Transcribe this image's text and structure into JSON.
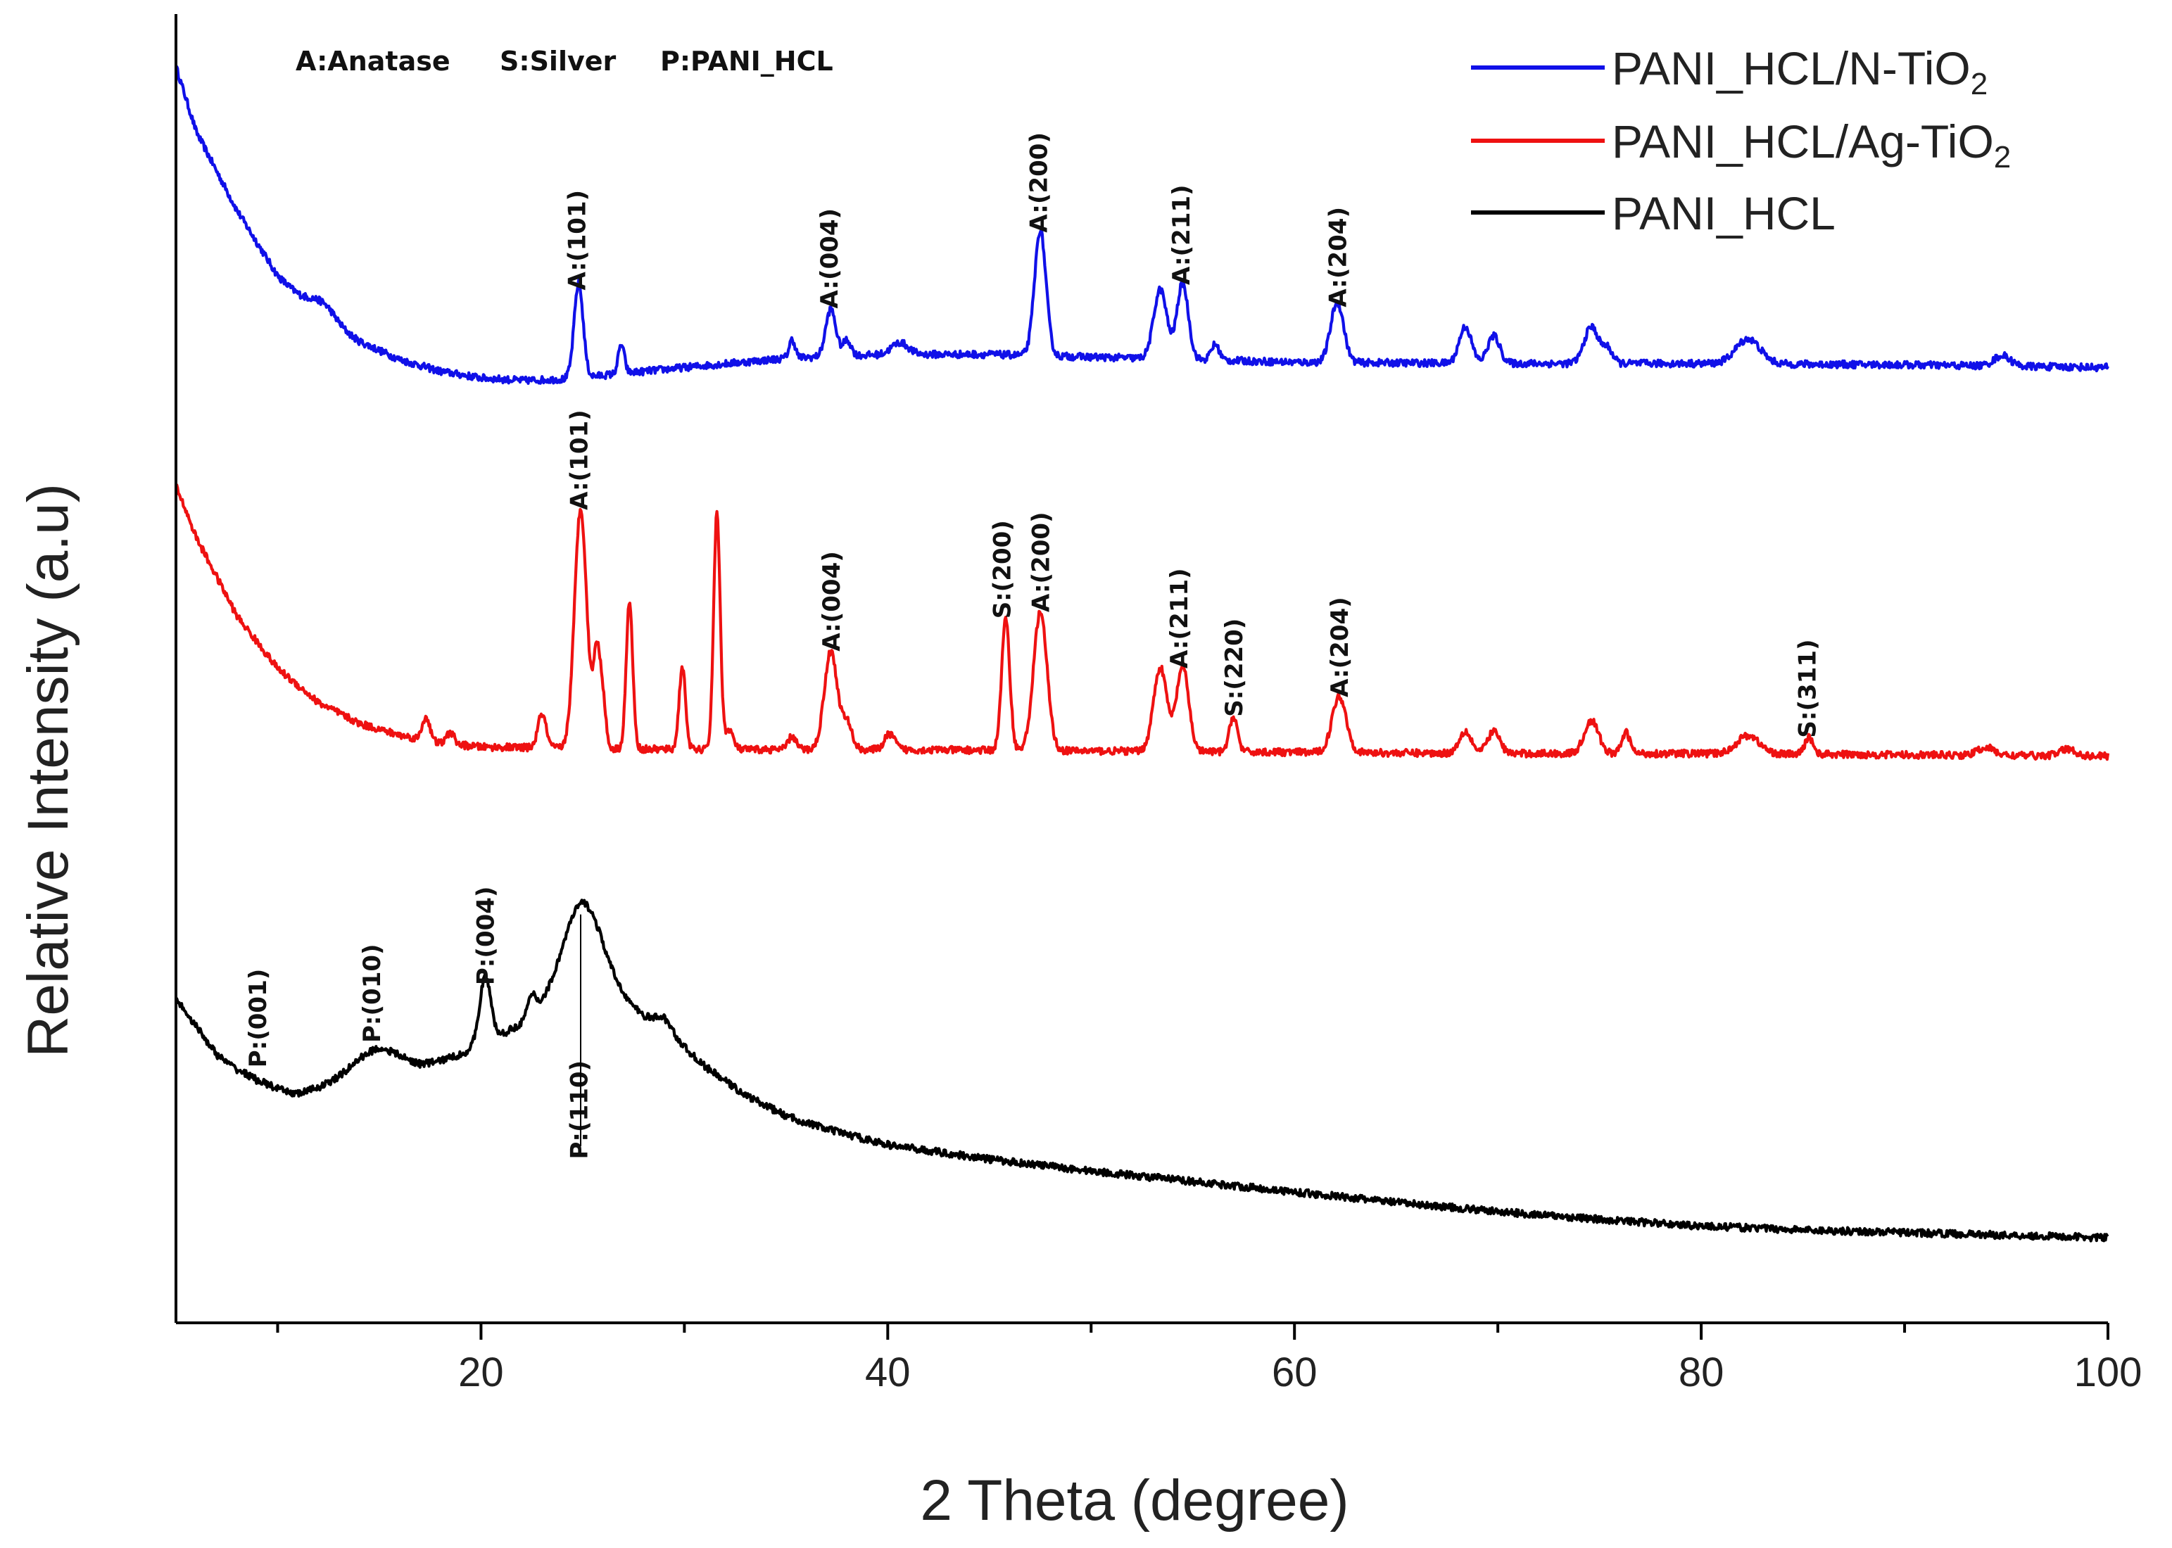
{
  "chart_data": {
    "type": "line",
    "title": "",
    "xlabel": "2 Theta (degree)",
    "ylabel": "Relative Intensity (a.u)",
    "xlim": [
      5,
      100
    ],
    "ylim": [
      0,
      100
    ],
    "x_ticks": [
      20,
      40,
      60,
      80,
      100
    ],
    "y_ticks": [],
    "phase_key": [
      "A:Anatase",
      "S:Silver",
      "P:PANI_HCL"
    ],
    "legend": {
      "position": "top-right",
      "items": [
        {
          "name": "PANI_HCL/N-TiO",
          "subscript": "2",
          "color": "#1010e8"
        },
        {
          "name": "PANI_HCL/Ag-TiO",
          "subscript": "2",
          "color": "#ee1111"
        },
        {
          "name": "PANI_HCL",
          "subscript": "",
          "color": "#000000"
        }
      ]
    },
    "series": [
      {
        "name": "PANI_HCL/N-TiO2",
        "color": "#1010e8",
        "baseline": [
          [
            5,
            96
          ],
          [
            6,
            91
          ],
          [
            8,
            85
          ],
          [
            10,
            80
          ],
          [
            12,
            77
          ],
          [
            14,
            75
          ],
          [
            16,
            73.6
          ],
          [
            18,
            72.7
          ],
          [
            20,
            72.2
          ],
          [
            22,
            72.0
          ],
          [
            24,
            72.1
          ],
          [
            26,
            72.4
          ],
          [
            30,
            73.0
          ],
          [
            35,
            73.7
          ],
          [
            40,
            74.0
          ],
          [
            45,
            74.0
          ],
          [
            50,
            73.8
          ],
          [
            55,
            73.6
          ],
          [
            60,
            73.4
          ],
          [
            70,
            73.3
          ],
          [
            80,
            73.3
          ],
          [
            90,
            73.2
          ],
          [
            100,
            73.0
          ]
        ],
        "peaks": [
          [
            12.2,
            1.2,
            0.6
          ],
          [
            24.8,
            7.2,
            0.22
          ],
          [
            26.9,
            2.2,
            0.15
          ],
          [
            35.3,
            1.4,
            0.15
          ],
          [
            37.2,
            3.6,
            0.25
          ],
          [
            38.0,
            1.2,
            0.2
          ],
          [
            40.6,
            0.9,
            0.4
          ],
          [
            47.5,
            9.6,
            0.28
          ],
          [
            53.4,
            5.3,
            0.32
          ],
          [
            54.5,
            5.8,
            0.28
          ],
          [
            56.1,
            1.2,
            0.2
          ],
          [
            62.1,
            4.6,
            0.32
          ],
          [
            68.4,
            2.8,
            0.3
          ],
          [
            69.8,
            2.1,
            0.3
          ],
          [
            74.6,
            2.8,
            0.35
          ],
          [
            75.4,
            1.1,
            0.25
          ],
          [
            82.3,
            1.9,
            0.6
          ],
          [
            94.8,
            0.8,
            0.4
          ]
        ]
      },
      {
        "name": "PANI_HCL/Ag-TiO2",
        "color": "#ee1111",
        "baseline": [
          [
            5,
            64
          ],
          [
            6,
            60
          ],
          [
            8,
            54
          ],
          [
            10,
            50
          ],
          [
            12,
            47.4
          ],
          [
            14,
            45.8
          ],
          [
            16,
            44.9
          ],
          [
            18,
            44.3
          ],
          [
            20,
            44.0
          ],
          [
            25,
            43.9
          ],
          [
            30,
            43.8
          ],
          [
            40,
            43.8
          ],
          [
            50,
            43.7
          ],
          [
            60,
            43.6
          ],
          [
            70,
            43.5
          ],
          [
            80,
            43.5
          ],
          [
            90,
            43.4
          ],
          [
            100,
            43.3
          ]
        ],
        "peaks": [
          [
            17.3,
            1.8,
            0.18
          ],
          [
            18.5,
            0.9,
            0.18
          ],
          [
            23.0,
            2.6,
            0.2
          ],
          [
            24.9,
            18.3,
            0.3
          ],
          [
            25.7,
            7.2,
            0.18
          ],
          [
            26.0,
            3.0,
            0.15
          ],
          [
            27.3,
            11.2,
            0.16
          ],
          [
            29.9,
            6.3,
            0.16
          ],
          [
            31.6,
            18.0,
            0.16
          ],
          [
            32.2,
            1.5,
            0.2
          ],
          [
            35.3,
            1.0,
            0.2
          ],
          [
            37.2,
            7.5,
            0.32
          ],
          [
            38.0,
            2.0,
            0.25
          ],
          [
            40.1,
            1.2,
            0.25
          ],
          [
            45.8,
            10.0,
            0.2
          ],
          [
            47.5,
            10.6,
            0.33
          ],
          [
            53.4,
            6.4,
            0.33
          ],
          [
            54.5,
            6.5,
            0.3
          ],
          [
            57.0,
            2.7,
            0.2
          ],
          [
            62.2,
            4.3,
            0.35
          ],
          [
            68.4,
            1.7,
            0.3
          ],
          [
            69.8,
            1.7,
            0.3
          ],
          [
            74.6,
            2.5,
            0.35
          ],
          [
            76.3,
            1.6,
            0.2
          ],
          [
            82.3,
            1.4,
            0.55
          ],
          [
            85.3,
            1.3,
            0.2
          ],
          [
            94.0,
            0.6,
            0.4
          ],
          [
            98.0,
            0.5,
            0.4
          ]
        ]
      },
      {
        "name": "PANI_HCL",
        "color": "#000000",
        "baseline": [
          [
            5,
            24.8
          ],
          [
            7,
            20.5
          ],
          [
            9,
            18.0
          ],
          [
            11,
            17.5
          ],
          [
            13,
            18.3
          ],
          [
            15,
            19.4
          ],
          [
            17,
            19.5
          ],
          [
            19,
            20.5
          ],
          [
            21,
            22.0
          ],
          [
            23,
            23.7
          ],
          [
            25,
            24.6
          ],
          [
            27,
            24.3
          ],
          [
            29,
            22.5
          ],
          [
            31,
            19.6
          ],
          [
            33,
            17.4
          ],
          [
            35,
            15.8
          ],
          [
            37,
            14.8
          ],
          [
            40,
            13.6
          ],
          [
            45,
            12.5
          ],
          [
            50,
            11.6
          ],
          [
            55,
            10.8
          ],
          [
            60,
            10.0
          ],
          [
            65,
            9.2
          ],
          [
            70,
            8.5
          ],
          [
            75,
            7.9
          ],
          [
            80,
            7.4
          ],
          [
            85,
            7.1
          ],
          [
            90,
            6.9
          ],
          [
            95,
            6.7
          ],
          [
            100,
            6.5
          ]
        ],
        "peaks": [
          [
            9.0,
            0.5,
            0.6
          ],
          [
            14.8,
            1.6,
            1.2
          ],
          [
            20.2,
            5.0,
            0.28
          ],
          [
            22.5,
            1.5,
            0.2
          ],
          [
            25.0,
            7.5,
            1.0
          ],
          [
            29.0,
            0.8,
            0.4
          ]
        ]
      }
    ],
    "annotations": [
      {
        "text": "A:(101)",
        "x": 24.8,
        "y": 78.9
      },
      {
        "text": "A:(004)",
        "x": 37.2,
        "y": 77.5
      },
      {
        "text": "A:(200)",
        "x": 47.5,
        "y": 83.3
      },
      {
        "text": "A:(211)",
        "x": 54.5,
        "y": 79.3
      },
      {
        "text": "A:(204)",
        "x": 62.2,
        "y": 77.6
      },
      {
        "text": "A:(101)",
        "x": 24.9,
        "y": 62.1
      },
      {
        "text": "A:(004)",
        "x": 37.3,
        "y": 51.3
      },
      {
        "text": "S:(200)",
        "x": 45.7,
        "y": 53.8
      },
      {
        "text": "A:(200)",
        "x": 47.6,
        "y": 54.3
      },
      {
        "text": "A:(211)",
        "x": 54.4,
        "y": 50.0
      },
      {
        "text": "S:(220)",
        "x": 57.1,
        "y": 46.3
      },
      {
        "text": "A:(204)",
        "x": 62.3,
        "y": 47.8
      },
      {
        "text": "S:(311)",
        "x": 85.3,
        "y": 44.7
      },
      {
        "text": "P:(001)",
        "x": 9.1,
        "y": 19.5
      },
      {
        "text": "P:(010)",
        "x": 14.7,
        "y": 21.4
      },
      {
        "text": "P:(004)",
        "x": 20.3,
        "y": 25.8
      },
      {
        "text": "P:(110)",
        "x": 24.9,
        "y": 12.5
      }
    ]
  }
}
